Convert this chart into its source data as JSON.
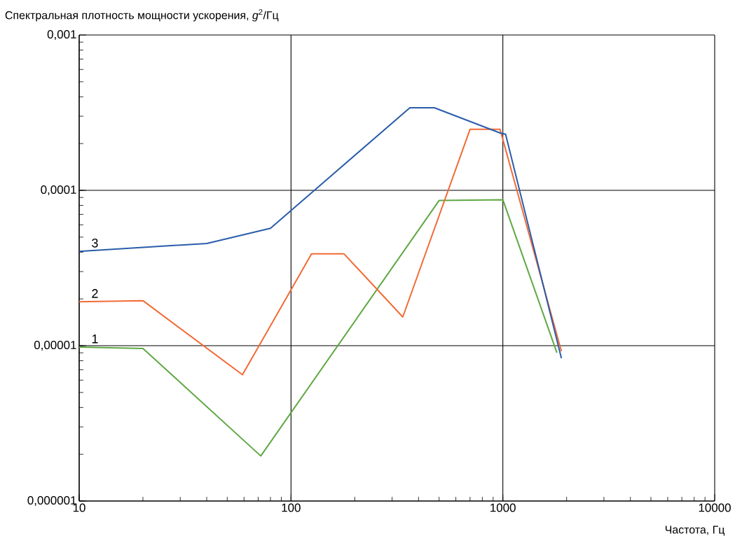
{
  "chart_data": {
    "type": "line",
    "xlabel": "Частота, Гц",
    "ylabel": "Спектральная плотность мощности ускорения, *g*$^{2}$/Гц",
    "log": "xy",
    "grid": true,
    "xlim": [
      10,
      10000
    ],
    "ylim": [
      1e-06,
      0.001
    ],
    "xticks": [
      10,
      100,
      1000,
      10000
    ],
    "yticks": [
      {
        "value": 1e-06,
        "label": "0,000001"
      },
      {
        "value": 1e-05,
        "label": "0,00001"
      },
      {
        "value": 0.0001,
        "label": "0,0001"
      },
      {
        "value": 0.001,
        "label": "0,001"
      }
    ],
    "series": [
      {
        "name": "1",
        "color": "#5fa843",
        "x": [
          10,
          20,
          72,
          500,
          1000,
          1800
        ],
        "values": [
          9.8e-06,
          9.6e-06,
          1.95e-06,
          8.6e-05,
          8.7e-05,
          9e-06
        ]
      },
      {
        "name": "2",
        "color": "#f26a35",
        "x": [
          10,
          20,
          59,
          125,
          178,
          337,
          700,
          970,
          1890
        ],
        "values": [
          1.92e-05,
          1.95e-05,
          6.5e-06,
          3.9e-05,
          3.9e-05,
          1.53e-05,
          0.000247,
          0.000247,
          9.2e-06
        ]
      },
      {
        "name": "3",
        "color": "#2a5caa",
        "x": [
          10,
          40,
          80,
          364,
          475,
          970,
          1030,
          1890
        ],
        "values": [
          4.05e-05,
          4.55e-05,
          5.7e-05,
          0.00034,
          0.00034,
          0.000234,
          0.00023,
          8.3e-06
        ]
      }
    ]
  }
}
